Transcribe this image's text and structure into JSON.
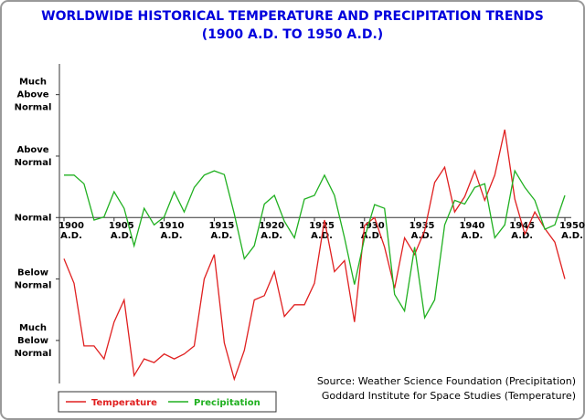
{
  "chart_data": {
    "type": "line",
    "title": "WORLDWIDE HISTORICAL TEMPERATURE AND PRECIPITATION TRENDS",
    "subtitle": "(1900 A.D. TO 1950 A.D.)",
    "annotations": [
      "Source: Weather Science Foundation (Precipitation)",
      "Goddard Institute for Space Studies (Temperature)"
    ],
    "x": [
      1900,
      1901,
      1902,
      1903,
      1904,
      1905,
      1906,
      1907,
      1908,
      1909,
      1910,
      1911,
      1912,
      1913,
      1914,
      1915,
      1916,
      1917,
      1918,
      1919,
      1920,
      1921,
      1922,
      1923,
      1924,
      1925,
      1926,
      1927,
      1928,
      1929,
      1930,
      1931,
      1932,
      1933,
      1934,
      1935,
      1936,
      1937,
      1938,
      1939,
      1940,
      1941,
      1942,
      1943,
      1944,
      1945,
      1946,
      1947,
      1948,
      1949,
      1950
    ],
    "series": [
      {
        "name": "Temperature",
        "color": "#e02020",
        "values": [
          -0.67,
          -1.07,
          -2.09,
          -2.09,
          -2.3,
          -1.7,
          -1.34,
          -2.57,
          -2.3,
          -2.36,
          -2.22,
          -2.3,
          -2.22,
          -2.09,
          -1.0,
          -0.6,
          -2.04,
          -2.63,
          -2.16,
          -1.34,
          -1.27,
          -0.88,
          -1.61,
          -1.42,
          -1.42,
          -1.07,
          -0.04,
          -0.88,
          -0.7,
          -1.7,
          -0.13,
          0,
          -0.48,
          -1.15,
          -0.33,
          -0.6,
          -0.21,
          0.57,
          0.82,
          0.09,
          0.34,
          0.76,
          0.28,
          0.69,
          1.43,
          0.3,
          -0.27,
          0.09,
          -0.18,
          -0.4,
          -1.0
        ]
      },
      {
        "name": "Precipitation",
        "color": "#20b020",
        "values": [
          0.69,
          0.69,
          0.55,
          -0.04,
          0.01,
          0.42,
          0.15,
          -0.46,
          0.15,
          -0.12,
          0.01,
          0.42,
          0.09,
          0.49,
          0.69,
          0.76,
          0.7,
          0.06,
          -0.67,
          -0.46,
          0.22,
          0.36,
          -0.06,
          -0.33,
          0.3,
          0.36,
          0.69,
          0.36,
          -0.33,
          -1.09,
          -0.33,
          0.21,
          0.15,
          -1.25,
          -1.52,
          -0.48,
          -1.63,
          -1.34,
          -0.12,
          0.28,
          0.22,
          0.49,
          0.55,
          -0.33,
          -0.12,
          0.76,
          0.49,
          0.28,
          -0.19,
          -0.12,
          0.36
        ]
      }
    ],
    "xlim": [
      1900,
      1950
    ],
    "xticks": [
      {
        "value": 1900,
        "label": "1900 A.D."
      },
      {
        "value": 1905,
        "label": "1905 A.D."
      },
      {
        "value": 1910,
        "label": "1910 A.D."
      },
      {
        "value": 1915,
        "label": "1915 A.D."
      },
      {
        "value": 1920,
        "label": "1920 A.D."
      },
      {
        "value": 1925,
        "label": "1925 A.D."
      },
      {
        "value": 1930,
        "label": "1930 A.D."
      },
      {
        "value": 1935,
        "label": "1935 A.D."
      },
      {
        "value": 1940,
        "label": "1940 A.D."
      },
      {
        "value": 1945,
        "label": "1945 A.D."
      },
      {
        "value": 1950,
        "label": "1950 A.D."
      }
    ],
    "ylim": [
      -2.7,
      2.5
    ],
    "yticks": [
      {
        "value": 2,
        "label": "Much Above Normal"
      },
      {
        "value": 1,
        "label": "Above Normal"
      },
      {
        "value": 0,
        "label": "Normal"
      },
      {
        "value": -1,
        "label": "Below Normal"
      },
      {
        "value": -2,
        "label": "Much Below Normal"
      }
    ],
    "legend": "bottom-left"
  }
}
